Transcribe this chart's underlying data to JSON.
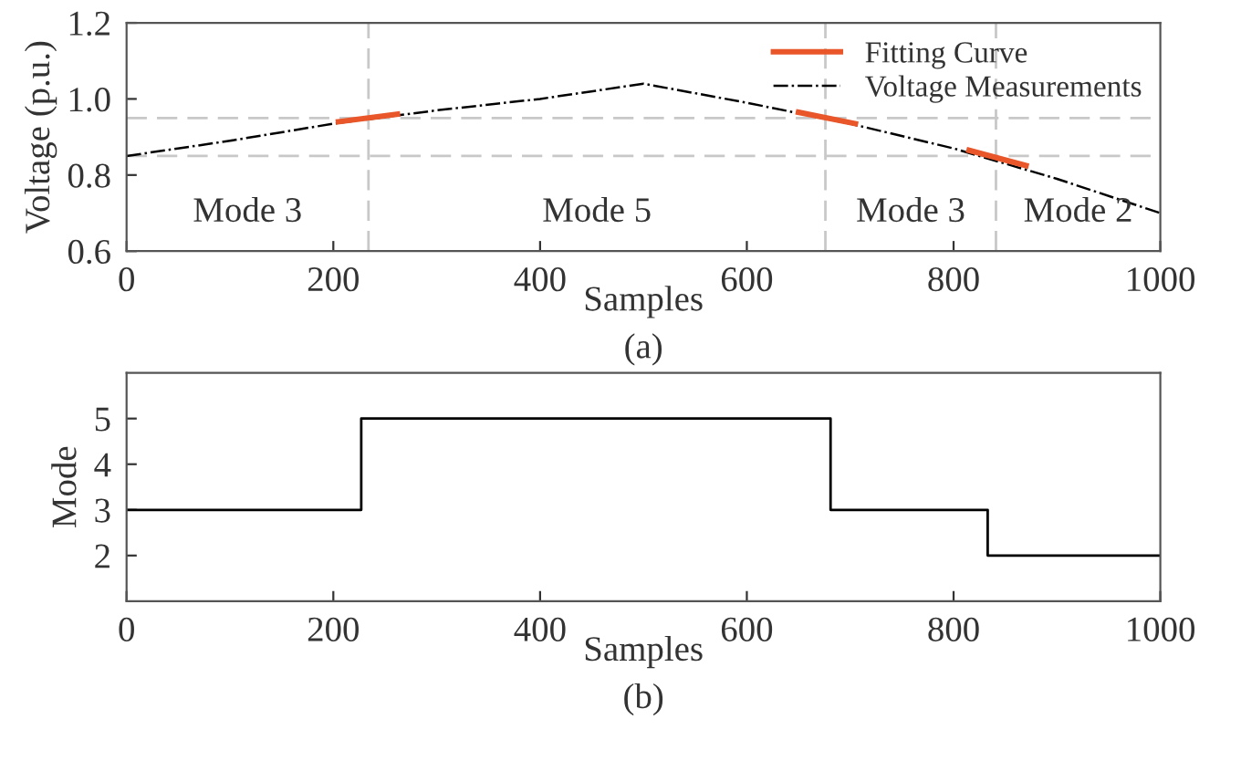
{
  "chart_data": [
    {
      "type": "line",
      "xlabel": "Samples",
      "ylabel": "Voltage (p.u.)",
      "xlim": [
        0,
        1000
      ],
      "ylim": [
        0.6,
        1.2
      ],
      "xticks": [
        0,
        200,
        400,
        600,
        800,
        1000
      ],
      "yticks": [
        {
          "value": 0.6,
          "label": "0.6"
        },
        {
          "value": 0.8,
          "label": "0.8"
        },
        {
          "value": 1.0,
          "label": "1.0"
        },
        {
          "value": 1.2,
          "label": "1.2"
        }
      ],
      "grid": false,
      "legend": "top right",
      "series": [
        {
          "name": "Fitting Curve",
          "color": "#e8562a",
          "line_style": "solid",
          "x": [
            205,
            262
          ],
          "values": [
            0.94,
            0.96
          ]
        },
        {
          "name": null,
          "color": "#e8562a",
          "line_style": "solid",
          "x": [
            650,
            705
          ],
          "values": [
            0.965,
            0.935
          ]
        },
        {
          "name": null,
          "color": "#e8562a",
          "line_style": "solid",
          "x": [
            815,
            870
          ],
          "values": [
            0.865,
            0.825
          ]
        },
        {
          "name": "Voltage Measurements",
          "color": "#000000",
          "line_style": "dashdot",
          "x": [
            0,
            100,
            200,
            300,
            400,
            500,
            600,
            700,
            800,
            900,
            1000
          ],
          "values": [
            0.85,
            0.89,
            0.935,
            0.97,
            1.0,
            1.04,
            0.99,
            0.935,
            0.87,
            0.79,
            0.7
          ]
        }
      ],
      "ref_lines": [
        {
          "axis": "y",
          "value": 0.95,
          "color": "#c8c8c8",
          "line_style": "dashed"
        },
        {
          "axis": "y",
          "value": 0.85,
          "color": "#c8c8c8",
          "line_style": "dashed"
        },
        {
          "axis": "x",
          "value": 234,
          "color": "#c8c8c8",
          "line_style": "dashed"
        },
        {
          "axis": "x",
          "value": 676,
          "color": "#c8c8c8",
          "line_style": "dashed"
        },
        {
          "axis": "x",
          "value": 841,
          "color": "#c8c8c8",
          "line_style": "dashed"
        }
      ],
      "annotations": [
        "Mode 3",
        "Mode 5",
        "Mode 3",
        "Mode 2",
        "(a)"
      ]
    },
    {
      "type": "step",
      "xlabel": "Samples",
      "ylabel": "Mode",
      "xlim": [
        0,
        1000
      ],
      "ylim": [
        1,
        6
      ],
      "xticks": [
        0,
        200,
        400,
        600,
        800,
        1000
      ],
      "yticks": [
        2,
        3,
        4,
        5
      ],
      "grid": false,
      "series": [
        {
          "color": "#000000",
          "x": [
            0,
            227,
            681,
            833,
            1000
          ],
          "values": [
            3,
            5,
            3,
            2,
            2
          ]
        }
      ],
      "annotations": [
        "(b)"
      ]
    }
  ]
}
